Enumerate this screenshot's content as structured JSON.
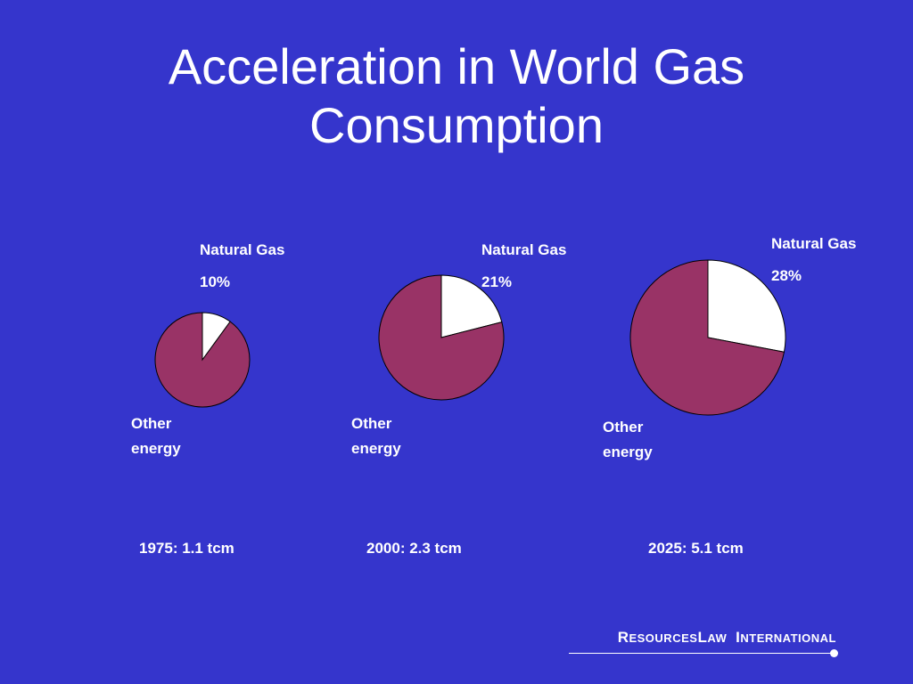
{
  "title": {
    "line1": "Acceleration in World  Gas",
    "line2": "Consumption"
  },
  "chart_data": [
    {
      "type": "pie",
      "slices": [
        {
          "name": "Natural Gas",
          "label_line1": "Natural Gas",
          "label_line2": "10%",
          "value": 10,
          "color": "#ffffff"
        },
        {
          "name": "Other energy",
          "label_line1": "Other",
          "label_line2": "energy",
          "value": 90,
          "color": "#993366"
        }
      ],
      "caption": "1975: 1.1 tcm"
    },
    {
      "type": "pie",
      "slices": [
        {
          "name": "Natural Gas",
          "label_line1": "Natural Gas",
          "label_line2": "21%",
          "value": 21,
          "color": "#ffffff"
        },
        {
          "name": "Other energy",
          "label_line1": "Other",
          "label_line2": "energy",
          "value": 79,
          "color": "#993366"
        }
      ],
      "caption": "2000: 2.3 tcm"
    },
    {
      "type": "pie",
      "slices": [
        {
          "name": "Natural Gas",
          "label_line1": "Natural Gas",
          "label_line2": "28%",
          "value": 28,
          "color": "#ffffff"
        },
        {
          "name": "Other energy",
          "label_line1": "Other",
          "label_line2": "energy",
          "value": 72,
          "color": "#993366"
        }
      ],
      "caption": "2025: 5.1 tcm"
    }
  ],
  "logo": {
    "r": "R",
    "esources": "ESOURCES",
    "l": "L",
    "aw": "AW",
    "i": "I",
    "nternational": "NTERNATIONAL"
  },
  "colors": {
    "background": "#3535cc",
    "gas": "#ffffff",
    "other": "#993366",
    "text": "#ffffff"
  }
}
